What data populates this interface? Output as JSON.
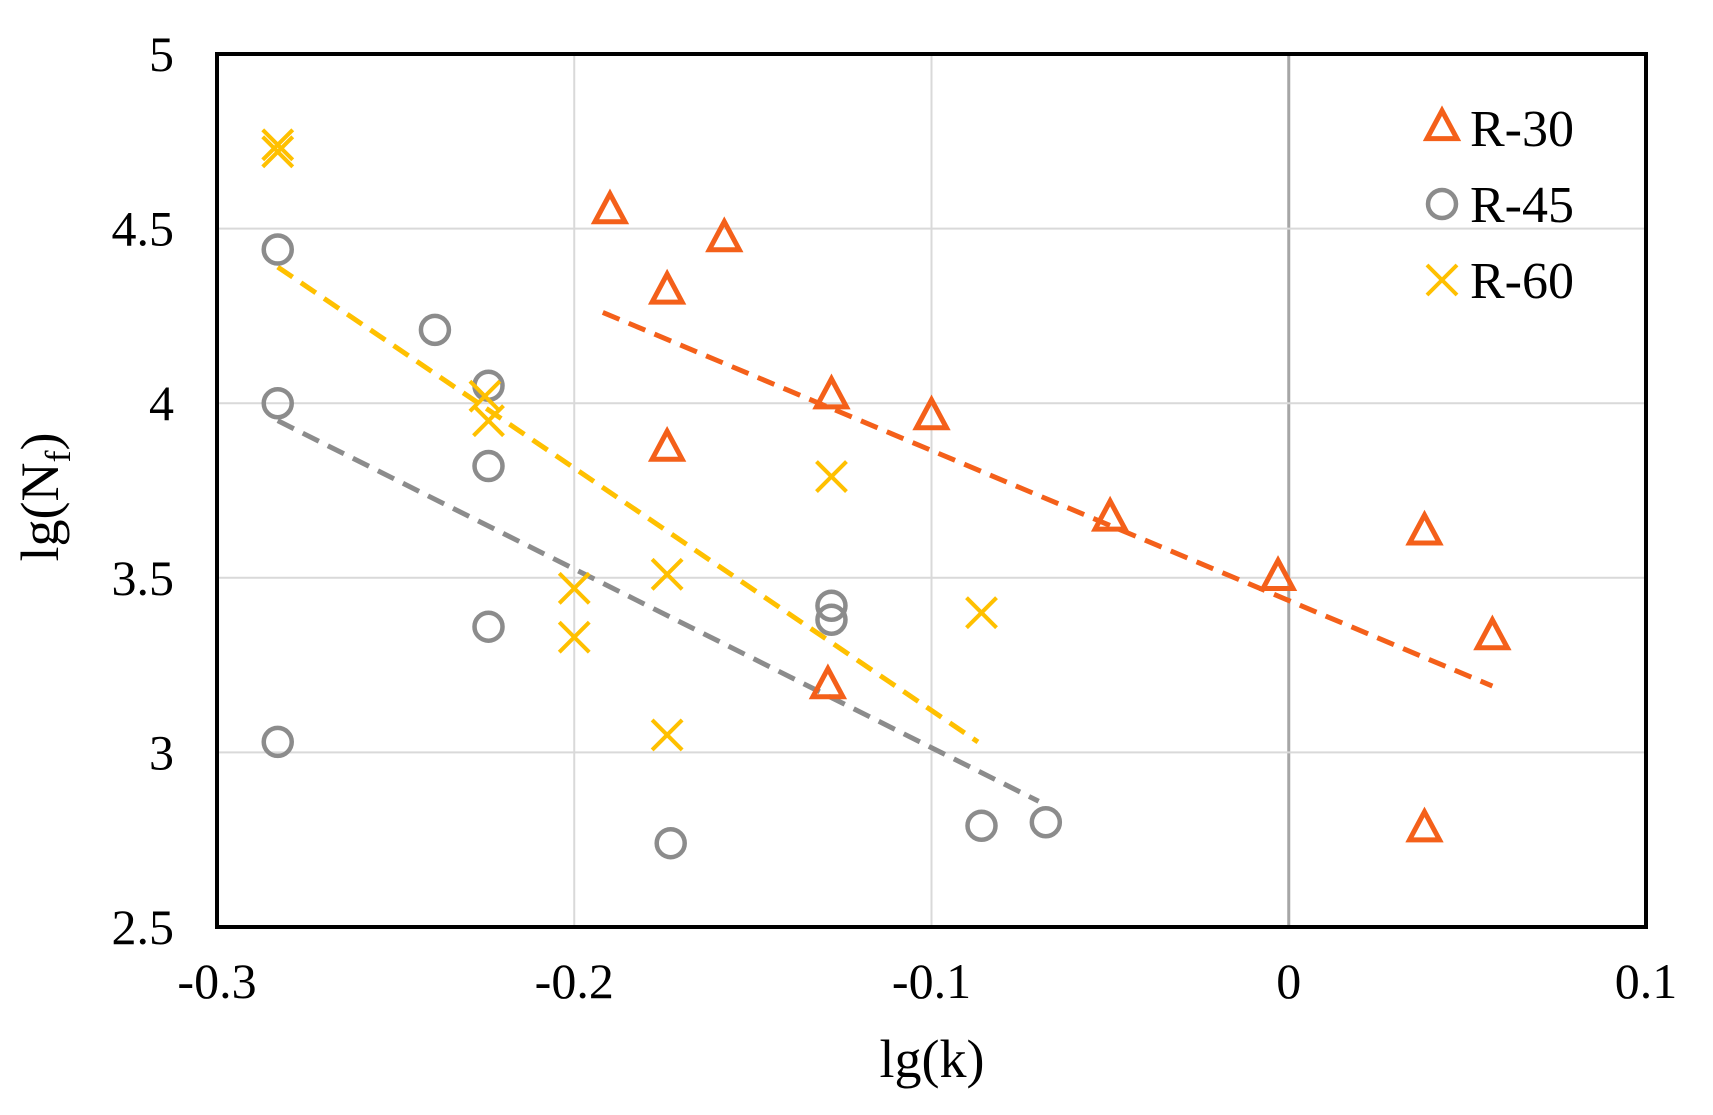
{
  "chart_data": {
    "type": "scatter",
    "xlabel": "lg(k)",
    "ylabel": "lg(N_f)",
    "xlim": [
      -0.3,
      0.1
    ],
    "ylim": [
      2.5,
      5
    ],
    "xticks": [
      -0.3,
      -0.2,
      -0.1,
      0,
      0.1
    ],
    "xtick_labels": [
      "-0.3",
      "-0.2",
      "-0.1",
      "0",
      "0.1"
    ],
    "yticks": [
      2.5,
      3,
      3.5,
      4,
      4.5,
      5
    ],
    "ytick_labels": [
      "2.5",
      "3",
      "3.5",
      "4",
      "4.5",
      "5"
    ],
    "grid": true,
    "legend_position": "top-right",
    "series": [
      {
        "name": "R-30",
        "marker": "triangle",
        "color": "#F4601A",
        "points": [
          [
            -0.19,
            4.55
          ],
          [
            -0.158,
            4.47
          ],
          [
            -0.174,
            4.32
          ],
          [
            -0.174,
            3.87
          ],
          [
            -0.128,
            4.02
          ],
          [
            -0.1,
            3.96
          ],
          [
            -0.05,
            3.67
          ],
          [
            -0.003,
            3.5
          ],
          [
            0.038,
            3.63
          ],
          [
            0.057,
            3.33
          ],
          [
            -0.129,
            3.19
          ],
          [
            0.038,
            2.78
          ]
        ],
        "trendline": [
          [
            -0.192,
            4.26
          ],
          [
            0.057,
            3.19
          ]
        ]
      },
      {
        "name": "R-45",
        "marker": "circle",
        "color": "#8C8C8C",
        "points": [
          [
            -0.283,
            4.44
          ],
          [
            -0.239,
            4.21
          ],
          [
            -0.224,
            4.05
          ],
          [
            -0.283,
            4.0
          ],
          [
            -0.224,
            3.82
          ],
          [
            -0.224,
            3.36
          ],
          [
            -0.283,
            3.03
          ],
          [
            -0.173,
            2.74
          ],
          [
            -0.128,
            3.42
          ],
          [
            -0.128,
            3.38
          ],
          [
            -0.086,
            2.79
          ],
          [
            -0.068,
            2.8
          ]
        ],
        "trendline": [
          [
            -0.283,
            3.95
          ],
          [
            -0.07,
            2.86
          ]
        ]
      },
      {
        "name": "R-60",
        "marker": "cross",
        "color": "#FFC000",
        "points": [
          [
            -0.283,
            4.74
          ],
          [
            -0.283,
            4.72
          ],
          [
            -0.225,
            4.02
          ],
          [
            -0.224,
            3.95
          ],
          [
            -0.2,
            3.47
          ],
          [
            -0.2,
            3.33
          ],
          [
            -0.174,
            3.51
          ],
          [
            -0.174,
            3.05
          ],
          [
            -0.128,
            3.79
          ],
          [
            -0.086,
            3.4
          ]
        ],
        "trendline": [
          [
            -0.283,
            4.39
          ],
          [
            -0.087,
            3.03
          ]
        ]
      }
    ]
  }
}
